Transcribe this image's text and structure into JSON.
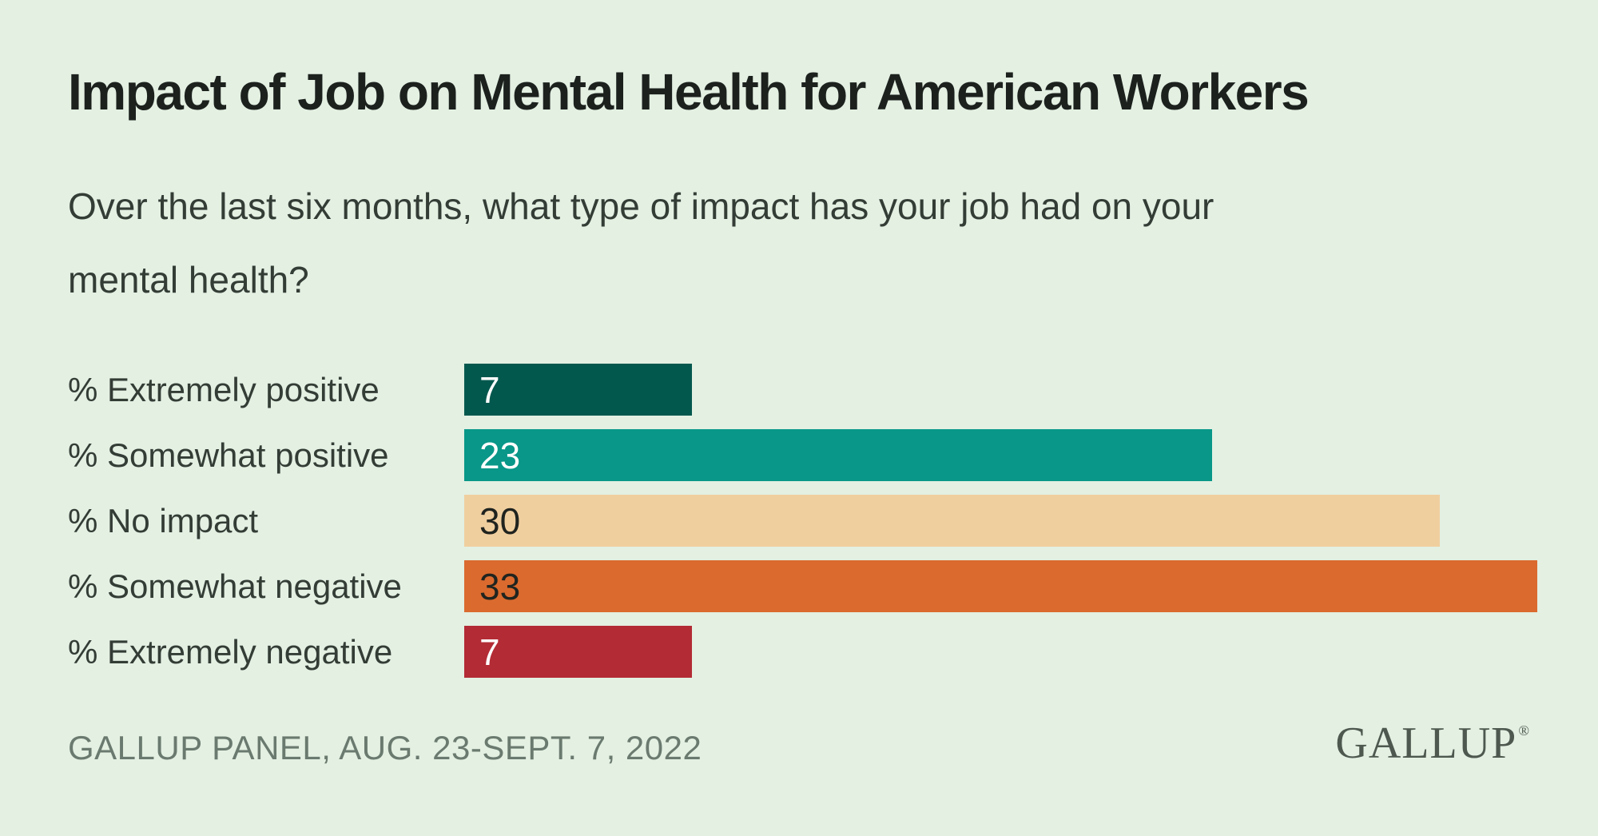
{
  "title": "Impact of Job on Mental Health for American Workers",
  "subtitle": {
    "line1": "Over the last six months, what type of impact has your job had on your",
    "line2": "mental health?"
  },
  "footer": {
    "source": "GALLUP PANEL, AUG. 23-SEPT. 7, 2022"
  },
  "logo": {
    "text": "GALLUP",
    "registered_mark": "®"
  },
  "colors": {
    "background": "#e3f0e2",
    "title_text": "#1c211e",
    "body_text": "#343c36",
    "source_text": "#6b7a6f",
    "logo_text": "#4e584f"
  },
  "chart_data": {
    "type": "bar",
    "orientation": "horizontal",
    "title": "Impact of Job on Mental Health for American Workers",
    "subtitle": "Over the last six months, what type of impact has your job had on your mental health?",
    "categories": [
      "% Extremely positive",
      "% Somewhat positive",
      "% No impact",
      "% Somewhat negative",
      "% Extremely negative"
    ],
    "values": [
      7,
      23,
      30,
      33,
      7
    ],
    "bar_colors": [
      "#03584e",
      "#089788",
      "#f0cf9f",
      "#da6a2e",
      "#b32b35"
    ],
    "value_label_colors": [
      "#ffffff",
      "#ffffff",
      "#20241f",
      "#20241f",
      "#ffffff"
    ],
    "xlim": [
      0,
      33
    ],
    "grid": false,
    "legend": false,
    "value_labels_inside_bars": true
  }
}
